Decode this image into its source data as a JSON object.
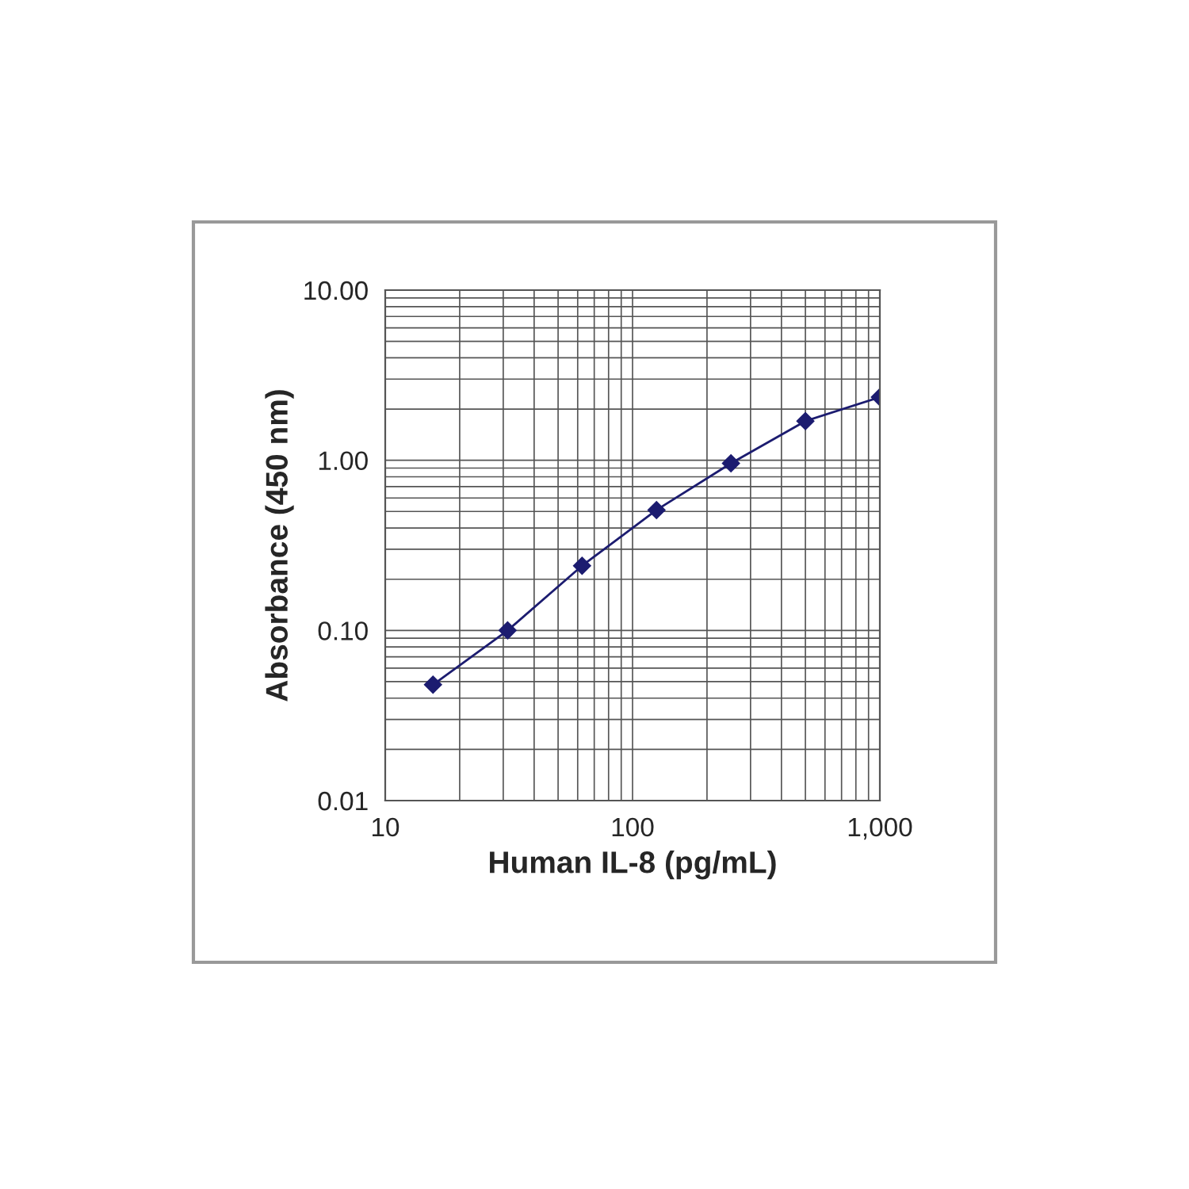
{
  "chart_data": {
    "type": "line",
    "xlabel": "Human IL-8 (pg/mL)",
    "ylabel": "Absorbance (450 nm)",
    "x": [
      15.6,
      31.25,
      62.5,
      125,
      250,
      500,
      1000
    ],
    "series": [
      {
        "color": "#1c1c70",
        "values": [
          0.048,
          0.1,
          0.24,
          0.51,
          0.96,
          1.7,
          2.35
        ]
      }
    ],
    "log": "xy",
    "xlim": [
      10,
      1000
    ],
    "ylim": [
      0.01,
      10
    ],
    "xticks": [
      10,
      100,
      {
        "value": 1000,
        "label": "1,000"
      }
    ],
    "yticks": [
      {
        "value": 0.01,
        "label": "0.01"
      },
      {
        "value": 0.1,
        "label": "0.10"
      },
      {
        "value": 1,
        "label": "1.00"
      },
      {
        "value": 10,
        "label": "10.00"
      }
    ],
    "grid": true,
    "marker": "diamond",
    "line_style": "solid"
  }
}
